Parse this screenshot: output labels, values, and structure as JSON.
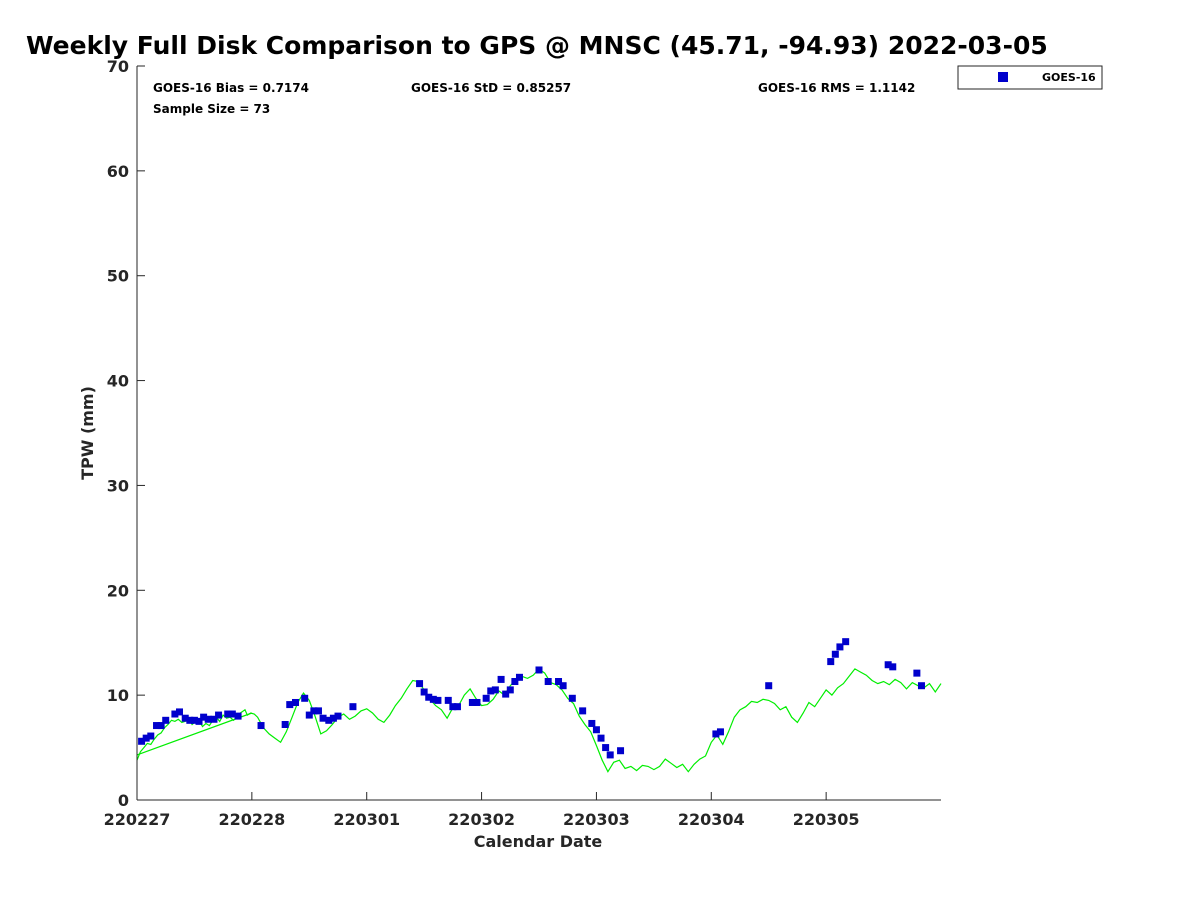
{
  "chart_data": {
    "type": "scatter",
    "title": "Weekly Full Disk Comparison to GPS @ MNSC (45.71, -94.93) 2022-03-05",
    "xlabel": "Calendar Date",
    "ylabel": "TPW (mm)",
    "xlim": [
      0,
      7
    ],
    "ylim": [
      0,
      70
    ],
    "x_ticks": [
      {
        "value": 0,
        "label": "220227"
      },
      {
        "value": 1,
        "label": "220228"
      },
      {
        "value": 2,
        "label": "220301"
      },
      {
        "value": 3,
        "label": "220302"
      },
      {
        "value": 4,
        "label": "220303"
      },
      {
        "value": 5,
        "label": "220304"
      },
      {
        "value": 6,
        "label": "220305"
      }
    ],
    "y_ticks": [
      0,
      10,
      20,
      30,
      40,
      50,
      60,
      70
    ],
    "grid": false,
    "legend_position": "outside-top-right",
    "stats": {
      "bias": "GOES-16 Bias = 0.7174",
      "std": "GOES-16 StD = 0.85257",
      "rms": "GOES-16 RMS = 1.1142",
      "sample": "Sample Size = 73"
    },
    "series": [
      {
        "name": "GOES-16",
        "kind": "markers",
        "color": "#0000cc",
        "points": [
          [
            0.04,
            5.6
          ],
          [
            0.08,
            5.9
          ],
          [
            0.12,
            6.1
          ],
          [
            0.17,
            7.1
          ],
          [
            0.21,
            7.1
          ],
          [
            0.25,
            7.6
          ],
          [
            0.33,
            8.2
          ],
          [
            0.37,
            8.4
          ],
          [
            0.42,
            7.8
          ],
          [
            0.46,
            7.6
          ],
          [
            0.5,
            7.6
          ],
          [
            0.54,
            7.5
          ],
          [
            0.58,
            7.9
          ],
          [
            0.62,
            7.7
          ],
          [
            0.67,
            7.7
          ],
          [
            0.71,
            8.1
          ],
          [
            0.79,
            8.2
          ],
          [
            0.83,
            8.2
          ],
          [
            0.88,
            8.0
          ],
          [
            1.08,
            7.1
          ],
          [
            1.29,
            7.2
          ],
          [
            1.33,
            9.1
          ],
          [
            1.38,
            9.3
          ],
          [
            1.46,
            9.7
          ],
          [
            1.5,
            8.1
          ],
          [
            1.54,
            8.5
          ],
          [
            1.58,
            8.5
          ],
          [
            1.62,
            7.8
          ],
          [
            1.67,
            7.6
          ],
          [
            1.71,
            7.8
          ],
          [
            1.75,
            8.0
          ],
          [
            1.88,
            8.9
          ],
          [
            2.46,
            11.1
          ],
          [
            2.5,
            10.3
          ],
          [
            2.54,
            9.8
          ],
          [
            2.58,
            9.6
          ],
          [
            2.62,
            9.5
          ],
          [
            2.71,
            9.5
          ],
          [
            2.75,
            8.9
          ],
          [
            2.79,
            8.9
          ],
          [
            2.92,
            9.3
          ],
          [
            2.96,
            9.3
          ],
          [
            3.04,
            9.7
          ],
          [
            3.08,
            10.4
          ],
          [
            3.12,
            10.5
          ],
          [
            3.17,
            11.5
          ],
          [
            3.21,
            10.1
          ],
          [
            3.25,
            10.5
          ],
          [
            3.29,
            11.3
          ],
          [
            3.33,
            11.7
          ],
          [
            3.5,
            12.4
          ],
          [
            3.58,
            11.3
          ],
          [
            3.67,
            11.3
          ],
          [
            3.71,
            10.9
          ],
          [
            3.79,
            9.7
          ],
          [
            3.88,
            8.5
          ],
          [
            3.96,
            7.3
          ],
          [
            4.0,
            6.7
          ],
          [
            4.04,
            5.9
          ],
          [
            4.08,
            5.0
          ],
          [
            4.12,
            4.3
          ],
          [
            4.21,
            4.7
          ],
          [
            5.04,
            6.3
          ],
          [
            5.08,
            6.5
          ],
          [
            5.5,
            10.9
          ],
          [
            6.04,
            13.2
          ],
          [
            6.08,
            13.9
          ],
          [
            6.12,
            14.6
          ],
          [
            6.17,
            15.1
          ],
          [
            6.54,
            12.9
          ],
          [
            6.58,
            12.7
          ],
          [
            6.79,
            12.1
          ],
          [
            6.83,
            10.9
          ]
        ]
      },
      {
        "name": "",
        "kind": "line",
        "color": "#00ee00",
        "points": [
          [
            0.0,
            3.8
          ],
          [
            0.03,
            4.6
          ],
          [
            0.06,
            5.0
          ],
          [
            0.09,
            5.4
          ],
          [
            0.12,
            5.3
          ],
          [
            0.15,
            5.8
          ],
          [
            0.18,
            6.2
          ],
          [
            0.21,
            6.4
          ],
          [
            0.24,
            6.9
          ],
          [
            0.27,
            7.2
          ],
          [
            0.3,
            7.6
          ],
          [
            0.33,
            7.5
          ],
          [
            0.36,
            7.7
          ],
          [
            0.39,
            7.4
          ],
          [
            0.42,
            7.5
          ],
          [
            0.45,
            7.8
          ],
          [
            0.48,
            7.2
          ],
          [
            0.51,
            7.5
          ],
          [
            0.54,
            7.6
          ],
          [
            0.57,
            7.0
          ],
          [
            0.6,
            7.3
          ],
          [
            0.63,
            7.1
          ],
          [
            0.66,
            7.6
          ],
          [
            0.69,
            7.9
          ],
          [
            0.72,
            7.5
          ],
          [
            0.75,
            8.1
          ],
          [
            0.78,
            7.8
          ],
          [
            0.81,
            7.9
          ],
          [
            0.84,
            7.6
          ],
          [
            0.87,
            7.9
          ],
          [
            0.9,
            8.3
          ],
          [
            0.94,
            8.6
          ],
          [
            0.96,
            8.1
          ],
          [
            0.99,
            8.3
          ],
          [
            1.02,
            8.2
          ],
          [
            1.05,
            7.9
          ],
          [
            1.1,
            6.9
          ],
          [
            1.15,
            6.3
          ],
          [
            1.2,
            5.9
          ],
          [
            1.25,
            5.5
          ],
          [
            1.3,
            6.5
          ],
          [
            1.35,
            7.9
          ],
          [
            1.4,
            9.3
          ],
          [
            1.45,
            10.2
          ],
          [
            1.5,
            9.5
          ],
          [
            1.55,
            8.0
          ],
          [
            1.6,
            6.3
          ],
          [
            1.65,
            6.6
          ],
          [
            1.7,
            7.2
          ],
          [
            1.75,
            7.9
          ],
          [
            1.8,
            8.2
          ],
          [
            1.85,
            7.7
          ],
          [
            1.9,
            8.0
          ],
          [
            1.95,
            8.5
          ],
          [
            2.0,
            8.7
          ],
          [
            2.05,
            8.3
          ],
          [
            2.1,
            7.7
          ],
          [
            2.15,
            7.4
          ],
          [
            2.2,
            8.1
          ],
          [
            2.25,
            9.0
          ],
          [
            2.3,
            9.7
          ],
          [
            2.35,
            10.6
          ],
          [
            2.4,
            11.4
          ],
          [
            2.45,
            11.3
          ],
          [
            2.5,
            10.5
          ],
          [
            2.55,
            9.6
          ],
          [
            2.6,
            9.0
          ],
          [
            2.65,
            8.6
          ],
          [
            2.7,
            7.8
          ],
          [
            2.75,
            8.8
          ],
          [
            2.8,
            9.0
          ],
          [
            2.85,
            10.0
          ],
          [
            2.9,
            10.6
          ],
          [
            2.95,
            9.7
          ],
          [
            3.0,
            9.0
          ],
          [
            3.05,
            9.1
          ],
          [
            3.1,
            9.6
          ],
          [
            3.15,
            10.4
          ],
          [
            3.2,
            10.0
          ],
          [
            3.25,
            10.9
          ],
          [
            3.3,
            11.5
          ],
          [
            3.35,
            11.8
          ],
          [
            3.4,
            11.6
          ],
          [
            3.45,
            11.9
          ],
          [
            3.5,
            12.5
          ],
          [
            3.55,
            12.1
          ],
          [
            3.6,
            11.2
          ],
          [
            3.65,
            11.0
          ],
          [
            3.7,
            10.5
          ],
          [
            3.75,
            9.7
          ],
          [
            3.8,
            9.2
          ],
          [
            3.85,
            8.0
          ],
          [
            3.9,
            7.2
          ],
          [
            3.95,
            6.5
          ],
          [
            4.0,
            5.2
          ],
          [
            4.05,
            3.8
          ],
          [
            4.1,
            2.7
          ],
          [
            4.15,
            3.6
          ],
          [
            4.2,
            3.8
          ],
          [
            4.25,
            3.0
          ],
          [
            4.3,
            3.2
          ],
          [
            4.35,
            2.8
          ],
          [
            4.4,
            3.3
          ],
          [
            4.45,
            3.2
          ],
          [
            4.5,
            2.9
          ],
          [
            4.55,
            3.2
          ],
          [
            4.6,
            3.9
          ],
          [
            4.65,
            3.5
          ],
          [
            4.7,
            3.1
          ],
          [
            4.75,
            3.4
          ],
          [
            4.8,
            2.7
          ],
          [
            4.85,
            3.4
          ],
          [
            4.9,
            3.9
          ],
          [
            4.95,
            4.2
          ],
          [
            5.0,
            5.5
          ],
          [
            5.05,
            6.2
          ],
          [
            5.1,
            5.3
          ],
          [
            5.15,
            6.5
          ],
          [
            5.2,
            7.9
          ],
          [
            5.25,
            8.6
          ],
          [
            5.3,
            8.9
          ],
          [
            5.35,
            9.4
          ],
          [
            5.4,
            9.3
          ],
          [
            5.45,
            9.6
          ],
          [
            5.5,
            9.5
          ],
          [
            5.55,
            9.2
          ],
          [
            5.6,
            8.6
          ],
          [
            5.65,
            8.9
          ],
          [
            5.7,
            7.9
          ],
          [
            5.75,
            7.4
          ],
          [
            5.8,
            8.3
          ],
          [
            5.85,
            9.3
          ],
          [
            5.9,
            8.9
          ],
          [
            5.95,
            9.7
          ],
          [
            6.0,
            10.5
          ],
          [
            6.05,
            10.0
          ],
          [
            6.1,
            10.7
          ],
          [
            6.15,
            11.1
          ],
          [
            6.2,
            11.8
          ],
          [
            6.25,
            12.5
          ],
          [
            6.3,
            12.2
          ],
          [
            6.35,
            11.9
          ],
          [
            6.4,
            11.4
          ],
          [
            6.45,
            11.1
          ],
          [
            6.5,
            11.3
          ],
          [
            6.55,
            11.0
          ],
          [
            6.6,
            11.5
          ],
          [
            6.65,
            11.2
          ],
          [
            6.7,
            10.6
          ],
          [
            6.75,
            11.2
          ],
          [
            6.8,
            10.9
          ],
          [
            6.85,
            10.7
          ],
          [
            6.9,
            11.1
          ],
          [
            6.95,
            10.3
          ],
          [
            7.0,
            11.1
          ]
        ]
      },
      {
        "name": "",
        "kind": "line",
        "color": "#00ee00",
        "points": [
          [
            0.0,
            4.3
          ],
          [
            1.0,
            8.3
          ]
        ]
      }
    ]
  }
}
